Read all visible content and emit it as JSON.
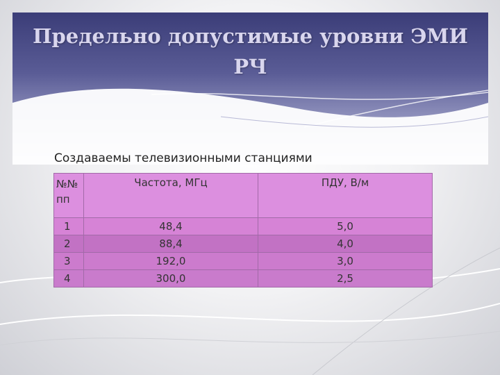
{
  "slide": {
    "title": "Предельно допустимые уровни ЭМИ РЧ",
    "subtitle": "Создаваемы телевизионными станциями"
  },
  "table": {
    "headers": [
      "№№ пп",
      "Частота, МГц",
      "ПДУ, В/м"
    ],
    "rows": [
      [
        "1",
        "48,4",
        "5,0"
      ],
      [
        "2",
        "88,4",
        "4,0"
      ],
      [
        "3",
        "192,0",
        "3,0"
      ],
      [
        "4",
        "300,0",
        "2,5"
      ]
    ]
  },
  "colors": {
    "header_dark": "#3b3d78",
    "table_fill": "#d683d6"
  }
}
